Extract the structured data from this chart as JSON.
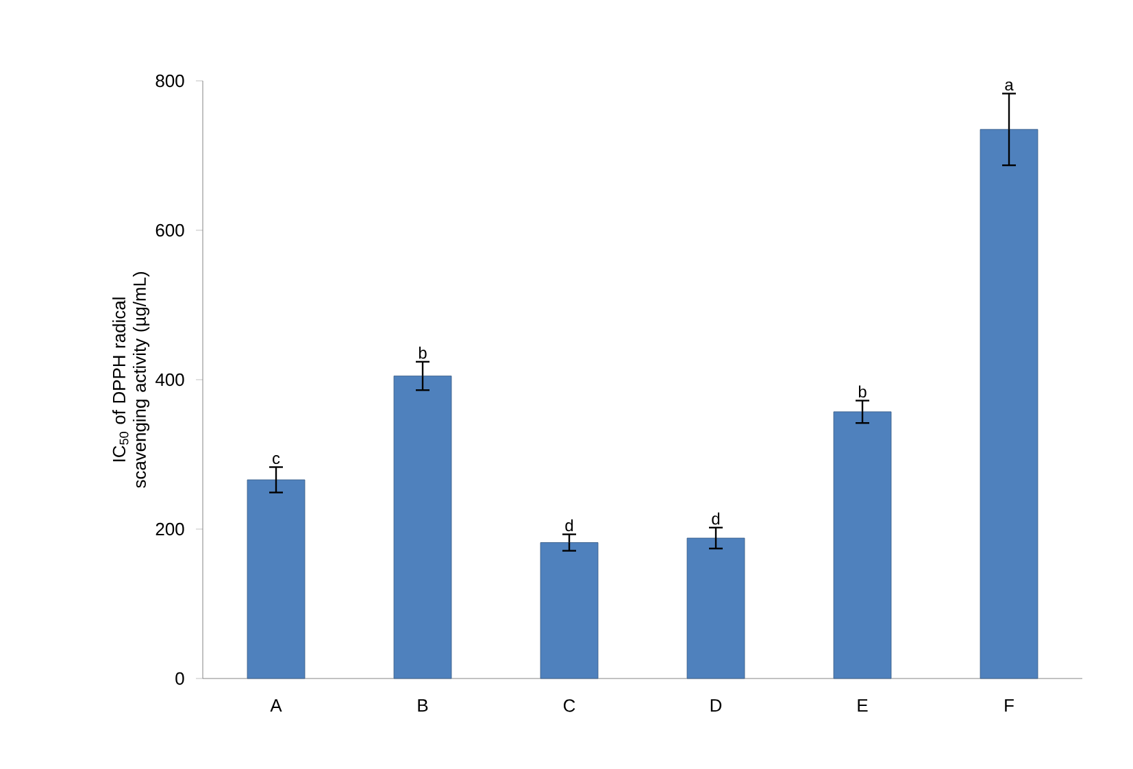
{
  "chart_data": {
    "type": "bar",
    "categories": [
      "A",
      "B",
      "C",
      "D",
      "E",
      "F"
    ],
    "values": [
      266,
      405,
      182,
      188,
      357,
      735
    ],
    "errors": [
      17,
      19,
      11,
      14,
      15,
      48
    ],
    "color": "#4f81bd",
    "ylabel": "IC$_{50}$ of  DPPH radical scavenging activity (µg/mL)",
    "ylim": [
      0,
      800
    ],
    "yticks": [
      0,
      200,
      400,
      600,
      800
    ],
    "grid": false,
    "annotations": [
      {
        "text": "c",
        "x": "A",
        "y": 283
      },
      {
        "text": "b",
        "x": "B",
        "y": 424
      },
      {
        "text": "d",
        "x": "C",
        "y": 193
      },
      {
        "text": "d",
        "x": "D",
        "y": 202
      },
      {
        "text": "b",
        "x": "E",
        "y": 372
      },
      {
        "text": "a",
        "x": "F",
        "y": 783
      }
    ]
  }
}
